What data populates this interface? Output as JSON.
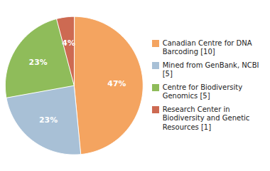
{
  "chart_data": {
    "type": "pie",
    "categories": [
      "Canadian Centre for DNA\nBarcoding [10]",
      "Mined from GenBank, NCBI [5]",
      "Centre for Biodiversity\nGenomics [5]",
      "Research Center in\nBiodiversity and Genetic\nResources [1]"
    ],
    "values": [
      47,
      23,
      23,
      4
    ],
    "value_labels": [
      "47%",
      "23%",
      "23%",
      "4%"
    ],
    "colors": [
      "#F4A460",
      "#A8C0D6",
      "#8FBC5A",
      "#CD6A52"
    ],
    "data_labels": true,
    "legend": "right"
  }
}
